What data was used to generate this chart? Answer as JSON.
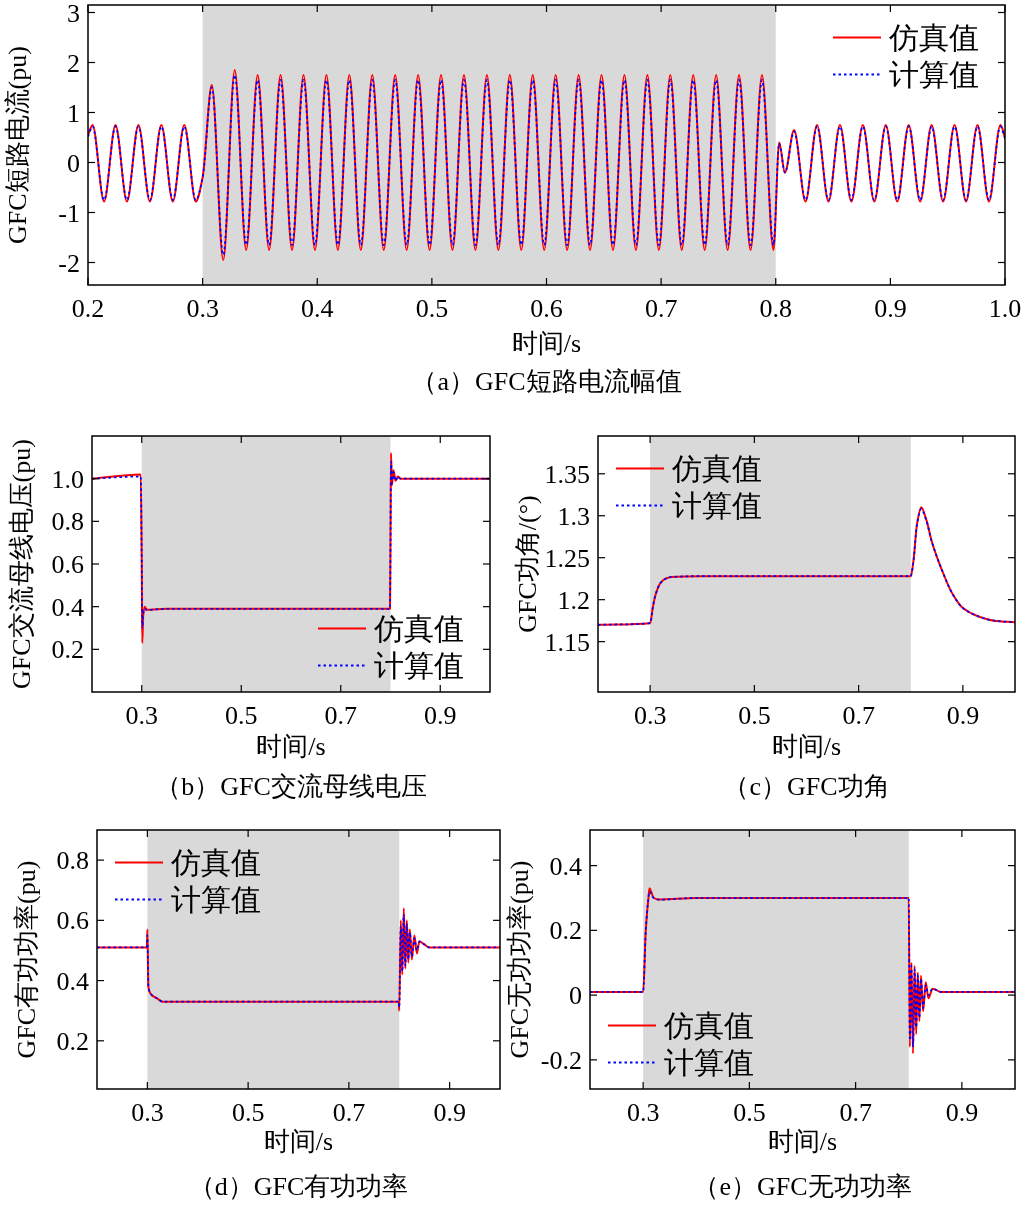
{
  "chart_data": [
    {
      "type": "line",
      "title": "（a）GFC短路电流幅值",
      "xlabel": "时间/s",
      "ylabel": "GFC短路电流(pu)",
      "legend": "top right",
      "xlim": [
        0.2,
        1.0
      ],
      "ylim": [
        -2.45,
        3.15
      ],
      "xticks": [
        0.2,
        0.3,
        0.4,
        0.5,
        0.6,
        0.7,
        0.8,
        0.9,
        {
          "value": 1,
          "label": "1.0"
        }
      ],
      "yticks": [
        -2,
        -1,
        0,
        1,
        2,
        3
      ],
      "bands": [
        {
          "axis": "x",
          "from": 0.3,
          "to": 0.8,
          "color": "#d9d9d9"
        }
      ],
      "x": [
        0.2,
        0.204,
        0.214,
        0.224,
        0.234,
        0.244,
        0.254,
        0.264,
        0.274,
        0.284,
        0.294,
        0.3,
        0.308,
        0.318,
        0.328,
        0.338,
        0.348,
        0.358,
        0.368,
        0.378,
        0.388,
        0.398,
        0.408,
        0.418,
        0.428,
        0.438,
        0.448,
        0.458,
        0.468,
        0.478,
        0.488,
        0.498,
        0.508,
        0.518,
        0.528,
        0.538,
        0.548,
        0.558,
        0.568,
        0.578,
        0.588,
        0.598,
        0.608,
        0.618,
        0.628,
        0.638,
        0.648,
        0.658,
        0.668,
        0.678,
        0.688,
        0.698,
        0.708,
        0.718,
        0.728,
        0.738,
        0.748,
        0.758,
        0.768,
        0.778,
        0.788,
        0.798,
        0.803,
        0.808,
        0.816,
        0.826,
        0.836,
        0.846,
        0.856,
        0.866,
        0.876,
        0.886,
        0.896,
        0.906,
        0.916,
        0.926,
        0.936,
        0.946,
        0.956,
        0.966,
        0.976,
        0.986,
        0.996,
        1.0
      ],
      "series": [
        {
          "name": "仿真值",
          "color": "#ff0000",
          "line_style": "solid",
          "values": [
            0.55,
            0.75,
            -0.78,
            0.75,
            -0.78,
            0.75,
            -0.78,
            0.75,
            -0.78,
            0.75,
            -0.78,
            -0.3,
            1.55,
            -1.95,
            1.85,
            -1.75,
            1.75,
            -1.75,
            1.75,
            -1.75,
            1.75,
            -1.75,
            1.75,
            -1.75,
            1.75,
            -1.75,
            1.75,
            -1.75,
            1.75,
            -1.75,
            1.75,
            -1.75,
            1.75,
            -1.75,
            1.75,
            -1.75,
            1.75,
            -1.75,
            1.75,
            -1.75,
            1.75,
            -1.75,
            1.75,
            -1.75,
            1.75,
            -1.75,
            1.75,
            -1.75,
            1.75,
            -1.75,
            1.75,
            -1.75,
            1.75,
            -1.75,
            1.75,
            -1.75,
            1.75,
            -1.75,
            1.75,
            -1.75,
            1.75,
            -1.75,
            0.4,
            -0.2,
            0.65,
            -0.78,
            0.75,
            -0.78,
            0.75,
            -0.78,
            0.75,
            -0.78,
            0.75,
            -0.78,
            0.75,
            -0.78,
            0.75,
            -0.78,
            0.75,
            -0.78,
            0.75,
            -0.78,
            0.75,
            0.5
          ]
        },
        {
          "name": "计算值",
          "color": "#0000ff",
          "line_style": "dotted",
          "values": [
            0.52,
            0.72,
            -0.75,
            0.72,
            -0.75,
            0.72,
            -0.75,
            0.72,
            -0.75,
            0.72,
            -0.75,
            -0.3,
            1.5,
            -1.85,
            1.75,
            -1.65,
            1.65,
            -1.65,
            1.65,
            -1.65,
            1.65,
            -1.65,
            1.65,
            -1.65,
            1.65,
            -1.65,
            1.65,
            -1.65,
            1.65,
            -1.65,
            1.65,
            -1.65,
            1.65,
            -1.65,
            1.65,
            -1.65,
            1.65,
            -1.65,
            1.65,
            -1.65,
            1.65,
            -1.65,
            1.65,
            -1.65,
            1.65,
            -1.65,
            1.65,
            -1.65,
            1.65,
            -1.65,
            1.65,
            -1.65,
            1.65,
            -1.65,
            1.65,
            -1.65,
            1.65,
            -1.65,
            1.65,
            -1.65,
            1.65,
            -1.65,
            0.38,
            -0.2,
            0.62,
            -0.75,
            0.72,
            -0.75,
            0.72,
            -0.75,
            0.72,
            -0.75,
            0.72,
            -0.75,
            0.72,
            -0.75,
            0.72,
            -0.75,
            0.72,
            -0.75,
            0.72,
            -0.75,
            0.72,
            0.48
          ]
        }
      ]
    },
    {
      "type": "line",
      "title": "（b）GFC交流母线电压",
      "xlabel": "时间/s",
      "ylabel": "GFC交流母线电压(pu)",
      "legend": "bottom right",
      "xlim": [
        0.2,
        1.0
      ],
      "ylim": [
        0,
        1.2
      ],
      "xticks": [
        0.3,
        0.5,
        0.7,
        0.9
      ],
      "yticks": [
        0.2,
        0.4,
        0.6,
        0.8,
        {
          "value": 1,
          "label": "1.0"
        }
      ],
      "bands": [
        {
          "axis": "x",
          "from": 0.3,
          "to": 0.8,
          "color": "#d9d9d9"
        }
      ],
      "x": [
        0.2,
        0.298,
        0.3,
        0.301,
        0.303,
        0.306,
        0.31,
        0.35,
        0.5,
        0.7,
        0.799,
        0.8,
        0.801,
        0.803,
        0.806,
        0.81,
        0.815,
        0.82,
        0.85,
        1.0
      ],
      "series": [
        {
          "name": "仿真值",
          "color": "#ff0000",
          "line_style": "solid",
          "values": [
            1.0,
            1.02,
            0.6,
            0.23,
            0.36,
            0.4,
            0.385,
            0.39,
            0.39,
            0.39,
            0.39,
            0.7,
            1.12,
            0.97,
            1.04,
            0.99,
            1.01,
            1.0,
            1.0,
            1.0
          ]
        },
        {
          "name": "计算值",
          "color": "#0000ff",
          "line_style": "dotted",
          "values": [
            1.0,
            1.01,
            0.6,
            0.3,
            0.37,
            0.39,
            0.385,
            0.39,
            0.39,
            0.39,
            0.39,
            0.7,
            1.08,
            0.98,
            1.03,
            0.99,
            1.01,
            1.0,
            1.0,
            1.0
          ]
        }
      ]
    },
    {
      "type": "line",
      "title": "（c）GFC功角",
      "xlabel": "时间/s",
      "ylabel": "GFC功角/(°)",
      "legend": "top left",
      "xlim": [
        0.2,
        1.0
      ],
      "ylim": [
        1.09,
        1.395
      ],
      "xticks": [
        0.3,
        0.5,
        0.7,
        0.9
      ],
      "yticks": [
        1.15,
        1.2,
        1.25,
        1.3,
        1.35
      ],
      "bands": [
        {
          "axis": "x",
          "from": 0.3,
          "to": 0.8,
          "color": "#d9d9d9"
        }
      ],
      "x": [
        0.2,
        0.3,
        0.305,
        0.31,
        0.32,
        0.33,
        0.34,
        0.4,
        0.6,
        0.8,
        0.805,
        0.812,
        0.82,
        0.83,
        0.84,
        0.86,
        0.88,
        0.9,
        0.93,
        0.96,
        1.0
      ],
      "series": [
        {
          "name": "仿真值",
          "color": "#ff0000",
          "line_style": "solid",
          "values": [
            1.17,
            1.172,
            1.19,
            1.205,
            1.22,
            1.225,
            1.227,
            1.228,
            1.228,
            1.228,
            1.245,
            1.29,
            1.31,
            1.295,
            1.27,
            1.235,
            1.207,
            1.19,
            1.18,
            1.175,
            1.173
          ]
        },
        {
          "name": "计算值",
          "color": "#0000ff",
          "line_style": "dotted",
          "values": [
            1.17,
            1.172,
            1.19,
            1.205,
            1.22,
            1.225,
            1.227,
            1.228,
            1.228,
            1.228,
            1.245,
            1.29,
            1.308,
            1.294,
            1.27,
            1.235,
            1.207,
            1.19,
            1.18,
            1.175,
            1.173
          ]
        }
      ]
    },
    {
      "type": "line",
      "title": "（d）GFC有功功率",
      "xlabel": "时间/s",
      "ylabel": "GFC有功功率(pu)",
      "legend": "top left",
      "xlim": [
        0.2,
        1.0
      ],
      "ylim": [
        0.04,
        0.9
      ],
      "xticks": [
        0.3,
        0.5,
        0.7,
        0.9
      ],
      "yticks": [
        0.2,
        0.4,
        0.6,
        0.8
      ],
      "bands": [
        {
          "axis": "x",
          "from": 0.3,
          "to": 0.8,
          "color": "#d9d9d9"
        }
      ],
      "x": [
        0.2,
        0.299,
        0.3,
        0.302,
        0.305,
        0.31,
        0.32,
        0.33,
        0.4,
        0.6,
        0.799,
        0.8,
        0.803,
        0.806,
        0.809,
        0.812,
        0.815,
        0.818,
        0.821,
        0.825,
        0.83,
        0.835,
        0.84,
        0.85,
        0.86,
        0.88,
        1.0
      ],
      "series": [
        {
          "name": "仿真值",
          "color": "#ff0000",
          "line_style": "solid",
          "values": [
            0.51,
            0.51,
            0.57,
            0.38,
            0.36,
            0.35,
            0.34,
            0.33,
            0.33,
            0.33,
            0.33,
            0.3,
            0.6,
            0.42,
            0.64,
            0.44,
            0.6,
            0.46,
            0.57,
            0.47,
            0.55,
            0.49,
            0.53,
            0.52,
            0.51,
            0.51,
            0.51
          ]
        },
        {
          "name": "计算值",
          "color": "#0000ff",
          "line_style": "dotted",
          "values": [
            0.51,
            0.51,
            0.55,
            0.38,
            0.36,
            0.35,
            0.34,
            0.33,
            0.33,
            0.33,
            0.33,
            0.31,
            0.58,
            0.43,
            0.62,
            0.45,
            0.59,
            0.47,
            0.56,
            0.48,
            0.54,
            0.5,
            0.53,
            0.52,
            0.51,
            0.51,
            0.51
          ]
        }
      ]
    },
    {
      "type": "line",
      "title": "（e）GFC无功功率",
      "xlabel": "时间/s",
      "ylabel": "GFC无功功率(pu)",
      "legend": "bottom left",
      "xlim": [
        0.2,
        1.0
      ],
      "ylim": [
        -0.29,
        0.51
      ],
      "xticks": [
        0.3,
        0.5,
        0.7,
        0.9
      ],
      "yticks": [
        -0.2,
        0,
        0.2,
        0.4
      ],
      "bands": [
        {
          "axis": "x",
          "from": 0.3,
          "to": 0.8,
          "color": "#d9d9d9"
        }
      ],
      "x": [
        0.2,
        0.3,
        0.305,
        0.31,
        0.312,
        0.315,
        0.32,
        0.33,
        0.4,
        0.6,
        0.8,
        0.802,
        0.805,
        0.808,
        0.811,
        0.814,
        0.817,
        0.82,
        0.823,
        0.827,
        0.832,
        0.837,
        0.845,
        0.86,
        1.0
      ],
      "series": [
        {
          "name": "仿真值",
          "color": "#ff0000",
          "line_style": "solid",
          "values": [
            0.01,
            0.01,
            0.2,
            0.3,
            0.33,
            0.32,
            0.3,
            0.295,
            0.3,
            0.3,
            0.3,
            -0.16,
            0.1,
            -0.18,
            0.09,
            -0.12,
            0.07,
            -0.08,
            0.06,
            -0.05,
            0.04,
            -0.01,
            0.02,
            0.01,
            0.01
          ]
        },
        {
          "name": "计算值",
          "color": "#0000ff",
          "line_style": "dotted",
          "values": [
            0.01,
            0.01,
            0.2,
            0.3,
            0.32,
            0.31,
            0.3,
            0.295,
            0.3,
            0.3,
            0.3,
            -0.14,
            0.09,
            -0.16,
            0.08,
            -0.1,
            0.06,
            -0.07,
            0.05,
            -0.04,
            0.03,
            0,
            0.02,
            0.01,
            0.01
          ]
        }
      ]
    }
  ]
}
